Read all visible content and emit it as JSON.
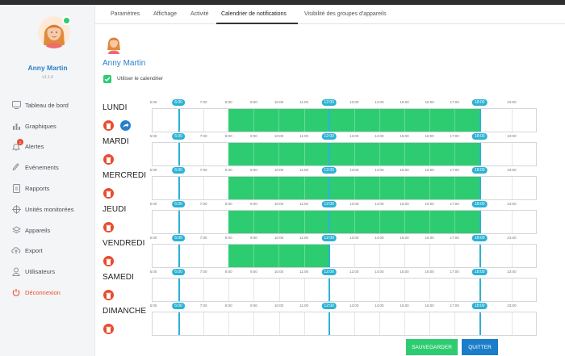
{
  "user": {
    "name": "Anny Martin",
    "version": "v1.1.4"
  },
  "sidebar": {
    "items": [
      {
        "label": "Tableau de bord",
        "icon": "monitor-icon",
        "name": "sidebar-item-tableau-de-bord"
      },
      {
        "label": "Graphiques",
        "icon": "bar-chart-icon",
        "name": "sidebar-item-graphiques"
      },
      {
        "label": "Alertes",
        "icon": "bell-icon",
        "name": "sidebar-item-alertes",
        "badge": "1"
      },
      {
        "label": "Evénements",
        "icon": "paperclip-icon",
        "name": "sidebar-item-evenements"
      },
      {
        "label": "Rapports",
        "icon": "document-icon",
        "name": "sidebar-item-rapports"
      },
      {
        "label": "Unités monitorées",
        "icon": "crosshair-icon",
        "name": "sidebar-item-unites-monitorees"
      },
      {
        "label": "Appareils",
        "icon": "layers-icon",
        "name": "sidebar-item-appareils"
      },
      {
        "label": "Export",
        "icon": "cloud-upload-icon",
        "name": "sidebar-item-export"
      },
      {
        "label": "Utilisateurs",
        "icon": "user-icon",
        "name": "sidebar-item-utilisateurs"
      },
      {
        "label": "Déconnexion",
        "icon": "power-icon",
        "name": "sidebar-item-deconnexion"
      }
    ]
  },
  "tabs": [
    {
      "label": "Paramètres",
      "active": false
    },
    {
      "label": "Affichage",
      "active": false
    },
    {
      "label": "Activité",
      "active": false
    },
    {
      "label": "Calendrier de notifications",
      "active": true
    },
    {
      "label": "Visibilité des groupes d'appareils",
      "active": false
    }
  ],
  "content": {
    "name": "Anny Martin",
    "checkbox_label": "Utiliser le calendrier",
    "checkbox_checked": true
  },
  "schedule": {
    "ticks": [
      "6:00",
      "7:00",
      "8:00",
      "9:00",
      "10:00",
      "11:00",
      "12:00",
      "13:00",
      "14:00",
      "15:00",
      "16:00",
      "17:00",
      "18:00",
      "23:00"
    ],
    "first_tick": "5:00",
    "highlight_ticks": [
      "6:00",
      "12:00",
      "18:00"
    ],
    "days": [
      {
        "label": "LUNDI",
        "start": 8,
        "end": 18,
        "actions": [
          "delete",
          "forward"
        ]
      },
      {
        "label": "MARDI",
        "start": 8,
        "end": 18,
        "actions": [
          "delete"
        ]
      },
      {
        "label": "MERCREDI",
        "start": 8,
        "end": 18,
        "actions": [
          "delete"
        ]
      },
      {
        "label": "JEUDI",
        "start": 8,
        "end": 18,
        "actions": [
          "delete"
        ]
      },
      {
        "label": "VENDREDI",
        "start": 8,
        "end": 12,
        "actions": [
          "delete"
        ]
      },
      {
        "label": "SAMEDI",
        "start": null,
        "end": null,
        "actions": [
          "delete"
        ]
      },
      {
        "label": "DIMANCHE",
        "start": null,
        "end": null,
        "actions": [
          "delete"
        ]
      }
    ]
  },
  "buttons": {
    "save": "SAUVEGARDER",
    "quit": "QUITTER"
  },
  "colors": {
    "accent": "#2a7fc9",
    "green": "#2ecc71",
    "marker": "#2ab2d5",
    "danger": "#e84c2f"
  }
}
